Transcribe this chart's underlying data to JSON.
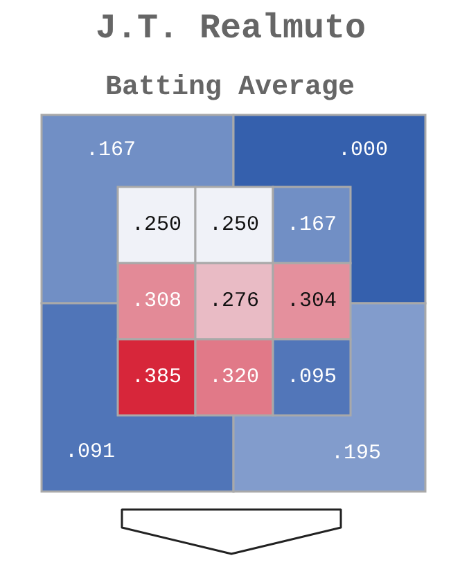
{
  "chart_data": [
    {
      "type": "other",
      "title": "J.T. Realmuto",
      "subtitle": "Batting Average",
      "categories": [
        null,
        null,
        null,
        null
      ],
      "values": [
        0.167,
        0.0,
        0.091,
        0.195
      ],
      "value_labels": [
        ".167",
        ".000",
        ".091",
        ".195"
      ]
    },
    {
      "type": "heatmap",
      "categories": [
        null,
        null,
        null
      ],
      "y_categories": [
        null,
        null,
        null
      ],
      "cells": [
        [
          0.25,
          0.25,
          0.167
        ],
        [
          0.308,
          0.276,
          0.304
        ],
        [
          0.385,
          0.32,
          0.095
        ]
      ],
      "cell_labels": [
        [
          ".250",
          ".250",
          ".167"
        ],
        [
          ".308",
          ".276",
          ".304"
        ],
        [
          ".385",
          ".320",
          ".095"
        ]
      ]
    }
  ]
}
